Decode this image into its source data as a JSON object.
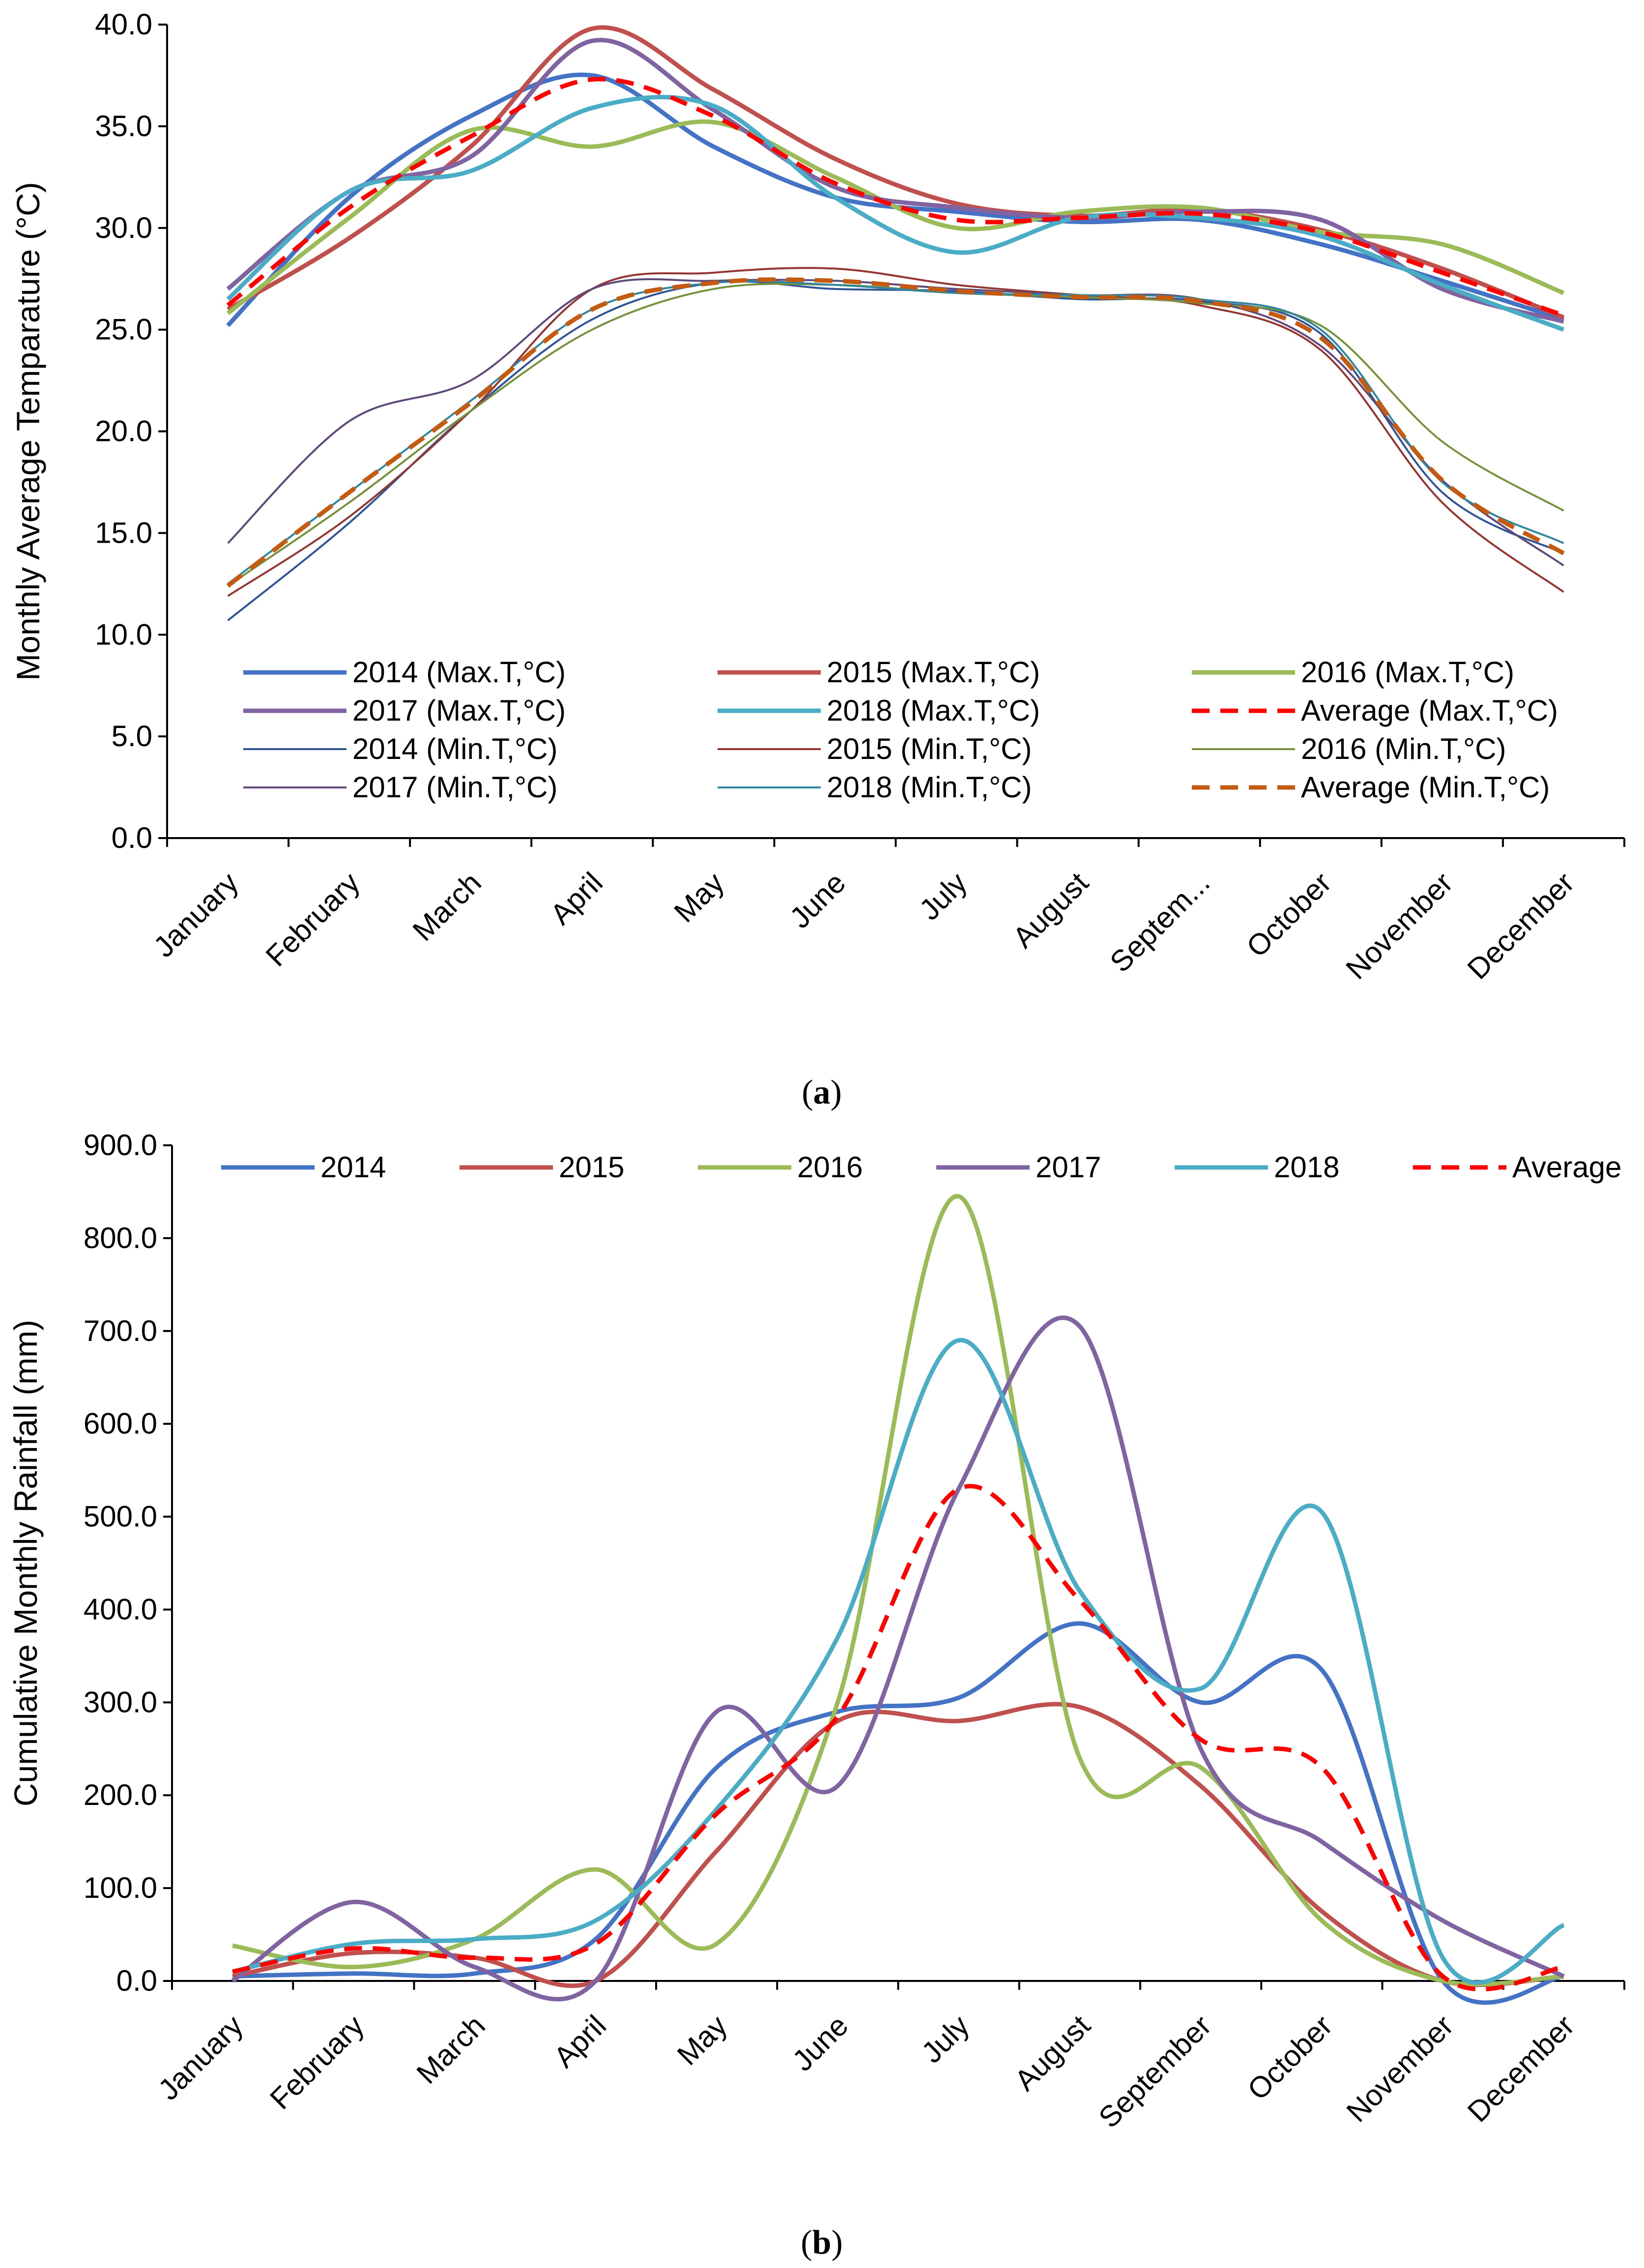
{
  "chart_data": [
    {
      "type": "line",
      "panel_label": "a",
      "ylabel": "Monthly Average Temparature (°C)",
      "xlabel": "",
      "ylim": [
        0,
        40
      ],
      "ytick_step": 5,
      "categories": [
        "January",
        "February",
        "March",
        "April",
        "May",
        "June",
        "July",
        "August",
        "Septem...",
        "October",
        "November",
        "December"
      ],
      "series": [
        {
          "name": "2014 (Max.T,°C)",
          "color": "#4472C4",
          "width": "thick",
          "dash": "solid",
          "values": [
            25.2,
            31.5,
            35.5,
            37.5,
            34.0,
            31.5,
            30.8,
            30.3,
            30.4,
            29.2,
            27.4,
            25.5
          ]
        },
        {
          "name": "2015 (Max.T,°C)",
          "color": "#C0504D",
          "width": "thick",
          "dash": "solid",
          "values": [
            26.0,
            29.5,
            34.0,
            39.8,
            36.8,
            33.4,
            31.2,
            30.6,
            30.9,
            29.9,
            28.0,
            25.6
          ]
        },
        {
          "name": "2016 (Max.T,°C)",
          "color": "#9BBB59",
          "width": "thick",
          "dash": "solid",
          "values": [
            25.8,
            30.5,
            34.8,
            34.0,
            35.2,
            32.5,
            30.0,
            30.8,
            31.0,
            29.8,
            29.2,
            26.8
          ]
        },
        {
          "name": "2017 (Max.T,°C)",
          "color": "#8064A2",
          "width": "thick",
          "dash": "solid",
          "values": [
            27.0,
            31.8,
            33.5,
            39.2,
            35.8,
            32.0,
            31.0,
            30.5,
            30.8,
            30.4,
            27.0,
            25.4
          ]
        },
        {
          "name": "2018 (Max.T,°C)",
          "color": "#4BACC6",
          "width": "thick",
          "dash": "solid",
          "values": [
            26.5,
            31.8,
            32.8,
            35.9,
            36.0,
            31.5,
            28.8,
            30.5,
            30.5,
            29.6,
            27.2,
            25.0
          ]
        },
        {
          "name": "Average (Max.T,°C)",
          "color": "#FF0000",
          "width": "thick",
          "dash": "dash",
          "values": [
            26.2,
            31.0,
            34.5,
            37.3,
            35.5,
            32.2,
            30.4,
            30.5,
            30.7,
            29.8,
            27.8,
            25.7
          ]
        },
        {
          "name": "2014 (Min.T,°C)",
          "color": "#2F5597",
          "width": "thin",
          "dash": "solid",
          "values": [
            10.7,
            15.5,
            21.0,
            25.5,
            27.3,
            27.0,
            26.9,
            26.5,
            26.4,
            24.8,
            17.0,
            14.0
          ]
        },
        {
          "name": "2015 (Min.T,°C)",
          "color": "#943634",
          "width": "thin",
          "dash": "solid",
          "values": [
            11.9,
            15.8,
            21.0,
            27.0,
            27.8,
            28.0,
            27.2,
            26.7,
            26.2,
            24.0,
            16.5,
            12.1
          ]
        },
        {
          "name": "2016 (Min.T,°C)",
          "color": "#76923C",
          "width": "thin",
          "dash": "solid",
          "values": [
            12.4,
            16.5,
            21.0,
            25.0,
            27.0,
            27.2,
            26.8,
            26.6,
            26.3,
            25.2,
            19.5,
            16.1
          ]
        },
        {
          "name": "2017 (Min.T,°C)",
          "color": "#5F497A",
          "width": "thin",
          "dash": "solid",
          "values": [
            14.5,
            20.5,
            22.5,
            27.0,
            27.4,
            27.4,
            27.0,
            26.7,
            26.5,
            24.2,
            17.6,
            13.4
          ]
        },
        {
          "name": "2018 (Min.T,°C)",
          "color": "#31859C",
          "width": "thin",
          "dash": "solid",
          "values": [
            12.5,
            17.0,
            21.5,
            26.0,
            27.3,
            27.2,
            26.8,
            26.7,
            26.5,
            25.0,
            17.5,
            14.5
          ]
        },
        {
          "name": "Average (Min.T,°C)",
          "color": "#C55A11",
          "width": "thick",
          "dash": "dash",
          "values": [
            12.4,
            17.0,
            21.4,
            26.0,
            27.3,
            27.4,
            26.9,
            26.6,
            26.4,
            24.6,
            17.6,
            14.0
          ]
        }
      ]
    },
    {
      "type": "line",
      "panel_label": "b",
      "ylabel": "Cumulative Monthly Rainfall (mm)",
      "xlabel": "",
      "ylim": [
        0,
        900
      ],
      "ytick_step": 100,
      "categories": [
        "January",
        "February",
        "March",
        "April",
        "May",
        "June",
        "July",
        "August",
        "September",
        "October",
        "November",
        "December"
      ],
      "series": [
        {
          "name": "2014",
          "color": "#4472C4",
          "width": "thick",
          "dash": "solid",
          "values": [
            5,
            8,
            8,
            45,
            230,
            290,
            305,
            385,
            300,
            335,
            0,
            5
          ]
        },
        {
          "name": "2015",
          "color": "#C0504D",
          "width": "thick",
          "dash": "solid",
          "values": [
            5,
            30,
            25,
            0,
            140,
            280,
            280,
            295,
            210,
            75,
            0,
            5
          ]
        },
        {
          "name": "2016",
          "color": "#9BBB59",
          "width": "thick",
          "dash": "solid",
          "values": [
            38,
            15,
            45,
            120,
            40,
            300,
            845,
            240,
            230,
            65,
            0,
            5
          ]
        },
        {
          "name": "2017",
          "color": "#8064A2",
          "width": "thick",
          "dash": "solid",
          "values": [
            0,
            85,
            15,
            0,
            290,
            210,
            530,
            705,
            250,
            150,
            65,
            5
          ]
        },
        {
          "name": "2018",
          "color": "#4BACC6",
          "width": "thick",
          "dash": "solid",
          "values": [
            10,
            40,
            45,
            65,
            185,
            370,
            690,
            420,
            315,
            505,
            25,
            60
          ]
        },
        {
          "name": "Average",
          "color": "#FF0000",
          "width": "thick",
          "dash": "dash",
          "values": [
            10,
            35,
            25,
            40,
            180,
            285,
            530,
            410,
            260,
            230,
            5,
            15
          ]
        }
      ]
    }
  ],
  "captions": {
    "a": {
      "open": "(",
      "letter": "a",
      "close": ")"
    },
    "b": {
      "open": "(",
      "letter": "b",
      "close": ")"
    }
  }
}
